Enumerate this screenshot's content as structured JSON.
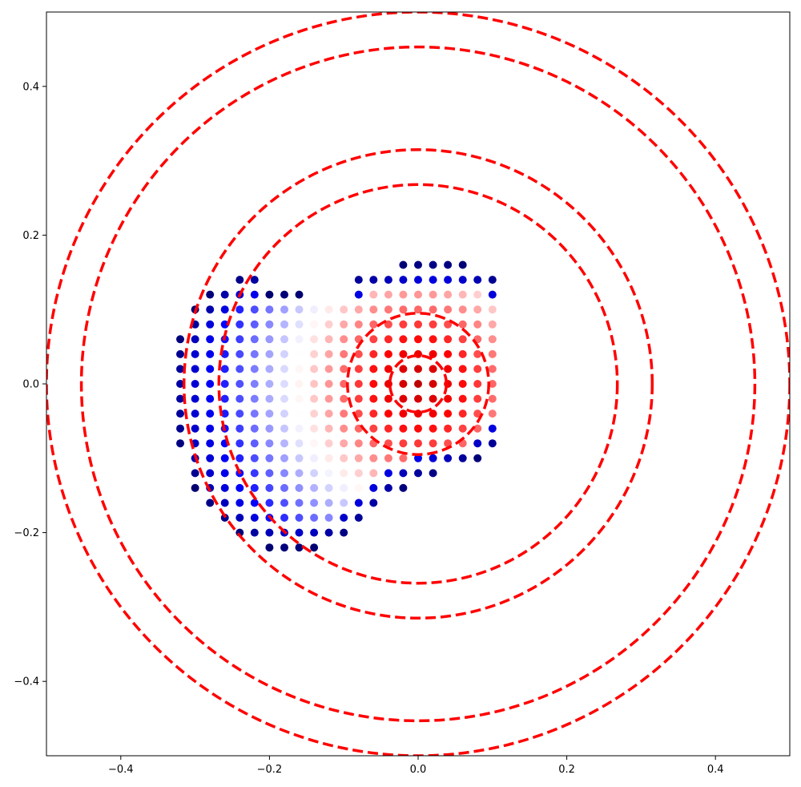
{
  "chart_data": {
    "type": "scatter",
    "title": "",
    "xlabel": "",
    "ylabel": "",
    "xlim": [
      -0.5,
      0.5
    ],
    "ylim": [
      -0.5,
      0.5
    ],
    "x_ticks": [
      -0.4,
      -0.2,
      0.0,
      0.2,
      0.4
    ],
    "y_ticks": [
      -0.4,
      -0.2,
      0.0,
      0.2,
      0.4
    ],
    "x_tick_labels": [
      "−0.4",
      "−0.2",
      "0.0",
      "0.2",
      "0.4"
    ],
    "y_tick_labels": [
      "−0.4",
      "−0.2",
      "0.0",
      "0.2",
      "0.4"
    ],
    "grid": false,
    "colormap": "seismic (blue = low, white = mid, red = high)",
    "grid_spacing": 0.02,
    "point_grid_center": [
      -0.1,
      -0.01
    ],
    "point_region": "irregular blob of points within roughly x -0.34..0.12, y -0.32..0.30",
    "value_model": "value is high (red) near (0,0) and decreases with distance from it; points at the blob edge are dark blue",
    "circles": [
      {
        "center": [
          0,
          0
        ],
        "radius": 0.038,
        "color": "#ff0000",
        "style": "dashed"
      },
      {
        "center": [
          0,
          0
        ],
        "radius": 0.095,
        "color": "#ff0000",
        "style": "dashed"
      },
      {
        "center": [
          0,
          0
        ],
        "radius": 0.268,
        "color": "#ff0000",
        "style": "dashed"
      },
      {
        "center": [
          0,
          0
        ],
        "radius": 0.315,
        "color": "#ff0000",
        "style": "dashed"
      },
      {
        "center": [
          0,
          0
        ],
        "radius": 0.453,
        "color": "#ff0000",
        "style": "dashed"
      },
      {
        "center": [
          0,
          0
        ],
        "radius": 0.5,
        "color": "#ff0000",
        "style": "dashed"
      }
    ],
    "colors": {
      "circle": "#ff0000",
      "dark_blue": "#00004c",
      "blue": "#0000ff",
      "white": "#ffffff",
      "red": "#ff0000",
      "dark_red": "#800000"
    }
  }
}
